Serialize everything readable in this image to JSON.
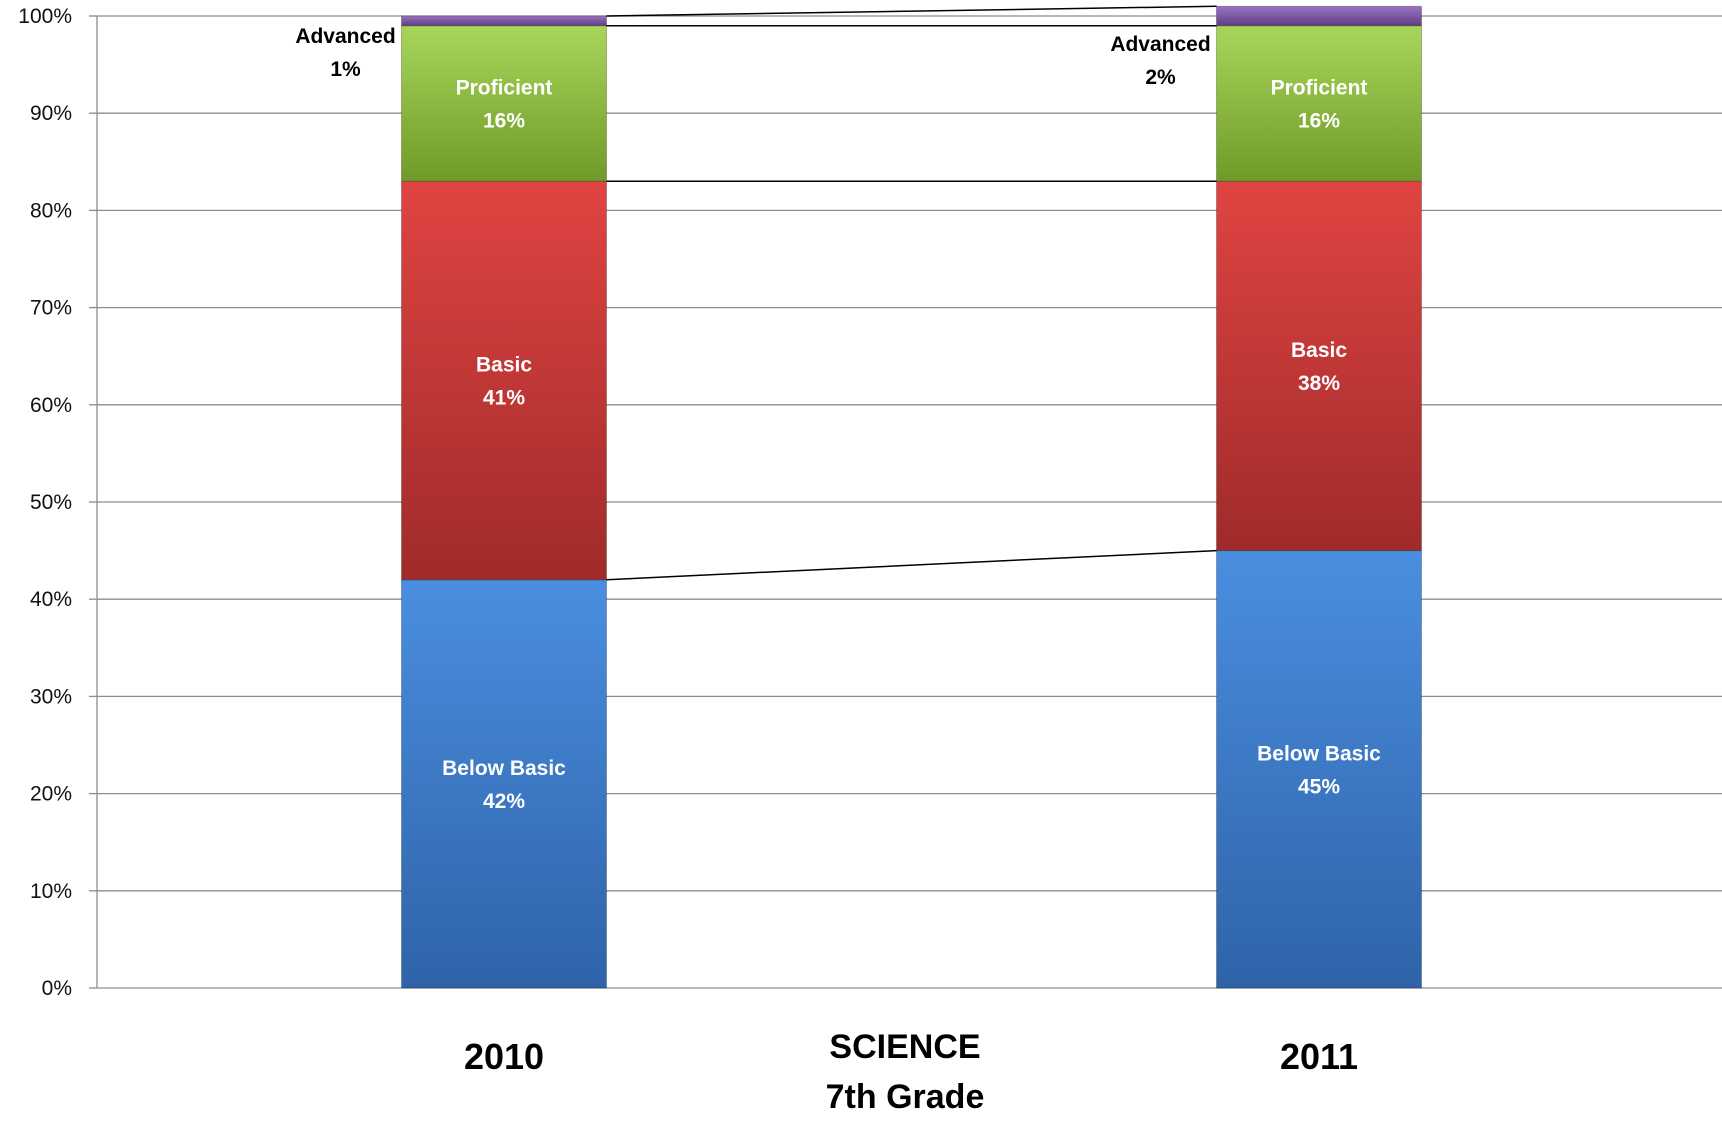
{
  "chart_data": {
    "type": "bar",
    "stacked": true,
    "percent_stacked": true,
    "title": [
      "SCIENCE",
      "7th Grade"
    ],
    "title_position": "bottom-center",
    "categories": [
      "2010",
      "2011"
    ],
    "y_ticks": [
      "0%",
      "10%",
      "20%",
      "30%",
      "40%",
      "50%",
      "60%",
      "70%",
      "80%",
      "90%",
      "100%"
    ],
    "ylim": [
      0,
      100
    ],
    "grid": true,
    "legend": "none",
    "series_lines": true,
    "series": [
      {
        "name": "Below Basic",
        "values": [
          42,
          45
        ],
        "labels": [
          "Below Basic\n42%",
          "Below Basic\n45%"
        ],
        "color": "#3a78c7"
      },
      {
        "name": "Basic",
        "values": [
          41,
          38
        ],
        "labels": [
          "Basic\n41%",
          "Basic\n38%"
        ],
        "color": "#c7393a"
      },
      {
        "name": "Proficient",
        "values": [
          16,
          16
        ],
        "labels": [
          "Proficient\n16%",
          "Proficient\n16%"
        ],
        "color": "#8cbf3a"
      },
      {
        "name": "Advanced",
        "values": [
          1,
          2
        ],
        "labels": [
          "Advanced\n1%",
          "Advanced\n2%"
        ],
        "label_outside": true,
        "color": "#7f5aa6"
      }
    ]
  }
}
